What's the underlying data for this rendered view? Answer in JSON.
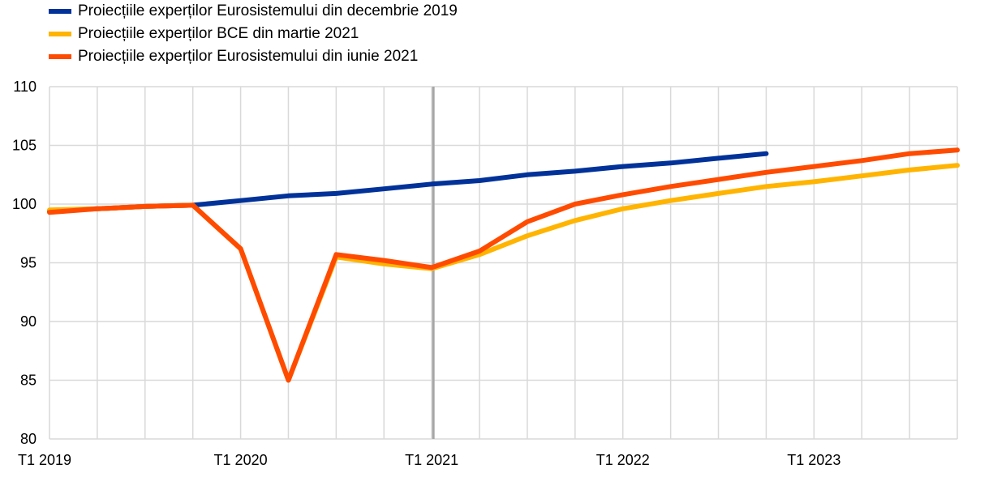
{
  "chart_data": {
    "type": "line",
    "title": "",
    "xlabel": "",
    "ylabel": "",
    "ylim": [
      80,
      110
    ],
    "yticks": [
      80,
      85,
      90,
      95,
      100,
      105,
      110
    ],
    "grid": true,
    "legend_position": "top-left",
    "x": [
      "T1 2019",
      "T2 2019",
      "T3 2019",
      "T4 2019",
      "T1 2020",
      "T2 2020",
      "T3 2020",
      "T4 2020",
      "T1 2021",
      "T2 2021",
      "T3 2021",
      "T4 2021",
      "T1 2022",
      "T2 2022",
      "T3 2022",
      "T4 2022",
      "T1 2023",
      "T2 2023",
      "T3 2023",
      "T4 2023"
    ],
    "xtick_labels": [
      "T1 2019",
      "T1 2020",
      "T1 2021",
      "T1 2022",
      "T1 2023"
    ],
    "vertical_marker": "T1 2021",
    "series": [
      {
        "name": "Proiecțiile experților Eurosistemului din decembrie 2019",
        "color": "#003299",
        "values": [
          99.4,
          99.6,
          99.8,
          99.9,
          100.3,
          100.7,
          100.9,
          101.3,
          101.7,
          102.0,
          102.5,
          102.8,
          103.2,
          103.5,
          103.9,
          104.3,
          null,
          null,
          null,
          null
        ]
      },
      {
        "name": "Proiecțiile experților BCE din martie 2021",
        "color": "#FFB400",
        "values": [
          99.5,
          99.6,
          99.8,
          99.9,
          96.2,
          85.0,
          95.5,
          94.9,
          94.5,
          95.7,
          97.3,
          98.6,
          99.6,
          100.3,
          100.9,
          101.5,
          101.9,
          102.4,
          102.9,
          103.3
        ]
      },
      {
        "name": "Proiecțiile experților Eurosistemului din iunie 2021",
        "color": "#FF4B00",
        "values": [
          99.3,
          99.6,
          99.8,
          99.9,
          96.2,
          85.0,
          95.7,
          95.2,
          94.6,
          96.0,
          98.5,
          100.0,
          100.8,
          101.5,
          102.1,
          102.7,
          103.2,
          103.7,
          104.3,
          104.6
        ]
      }
    ]
  }
}
